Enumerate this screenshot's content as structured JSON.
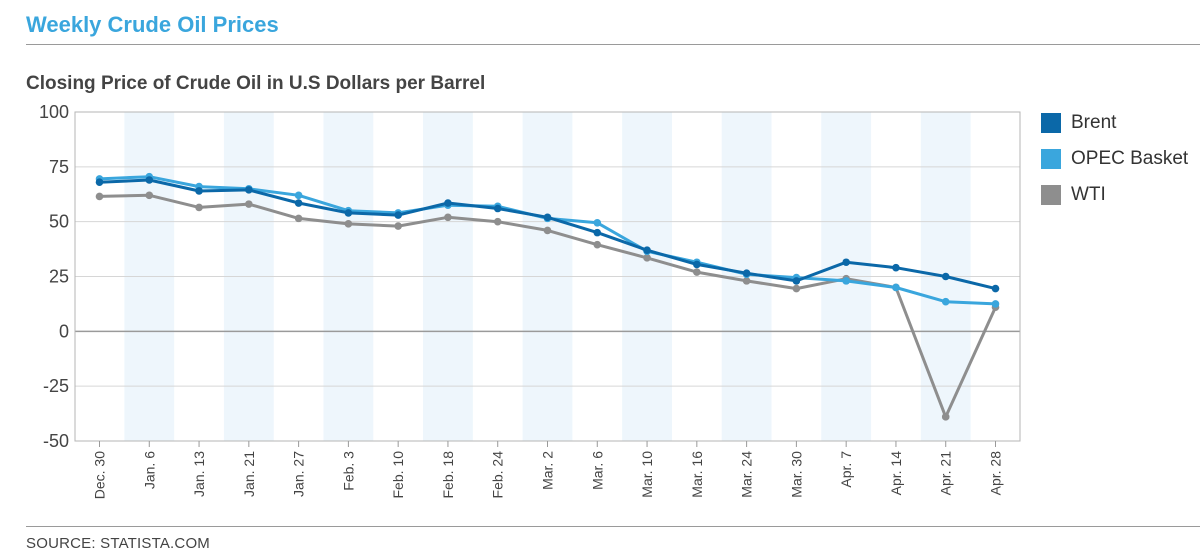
{
  "header": {
    "title": "Weekly Crude Oil Prices",
    "subtitle": "Closing Price of Crude Oil in U.S Dollars per Barrel"
  },
  "footer": {
    "source": "SOURCE: STATISTA.COM"
  },
  "colors": {
    "brent": "#0b68a8",
    "opec": "#3aa6dd",
    "wti": "#8e8e8e",
    "band": "#eef6fc",
    "grid": "#d6d6d6",
    "zero_line": "#9a9a9a"
  },
  "chart_data": {
    "type": "line",
    "title": "Weekly Crude Oil Prices",
    "subtitle": "Closing Price of Crude Oil in U.S Dollars per Barrel",
    "categories": [
      "Dec. 30",
      "Jan. 6",
      "Jan. 13",
      "Jan. 21",
      "Jan. 27",
      "Feb. 3",
      "Feb. 10",
      "Feb. 18",
      "Feb. 24",
      "Mar. 2",
      "Mar. 6",
      "Mar. 10",
      "Mar. 16",
      "Mar. 24",
      "Mar. 30",
      "Apr. 7",
      "Apr. 14",
      "Apr. 21",
      "Apr. 28"
    ],
    "series": [
      {
        "name": "Brent",
        "color": "#0b68a8",
        "values": [
          68,
          69,
          64,
          64.5,
          58.5,
          54,
          53,
          58.5,
          56,
          52,
          45,
          37,
          30.5,
          26.5,
          23,
          31.5,
          29,
          25,
          19.5
        ]
      },
      {
        "name": "OPEC Basket",
        "color": "#3aa6dd",
        "values": [
          69.5,
          70.5,
          66,
          65,
          62,
          55,
          54,
          57.5,
          57,
          51.5,
          49.5,
          36.5,
          31.5,
          26,
          24.5,
          23,
          20,
          13.5,
          12.5
        ]
      },
      {
        "name": "WTI",
        "color": "#8e8e8e",
        "values": [
          61.5,
          62,
          56.5,
          58,
          51.5,
          49,
          48,
          52,
          50,
          46,
          39.5,
          33.5,
          27,
          23,
          19.5,
          24,
          20,
          -39,
          11
        ]
      }
    ],
    "ylim": [
      -50,
      100
    ],
    "yticks": [
      100,
      75,
      50,
      25,
      0,
      -25,
      -50
    ],
    "grid": true,
    "legend": "right"
  }
}
